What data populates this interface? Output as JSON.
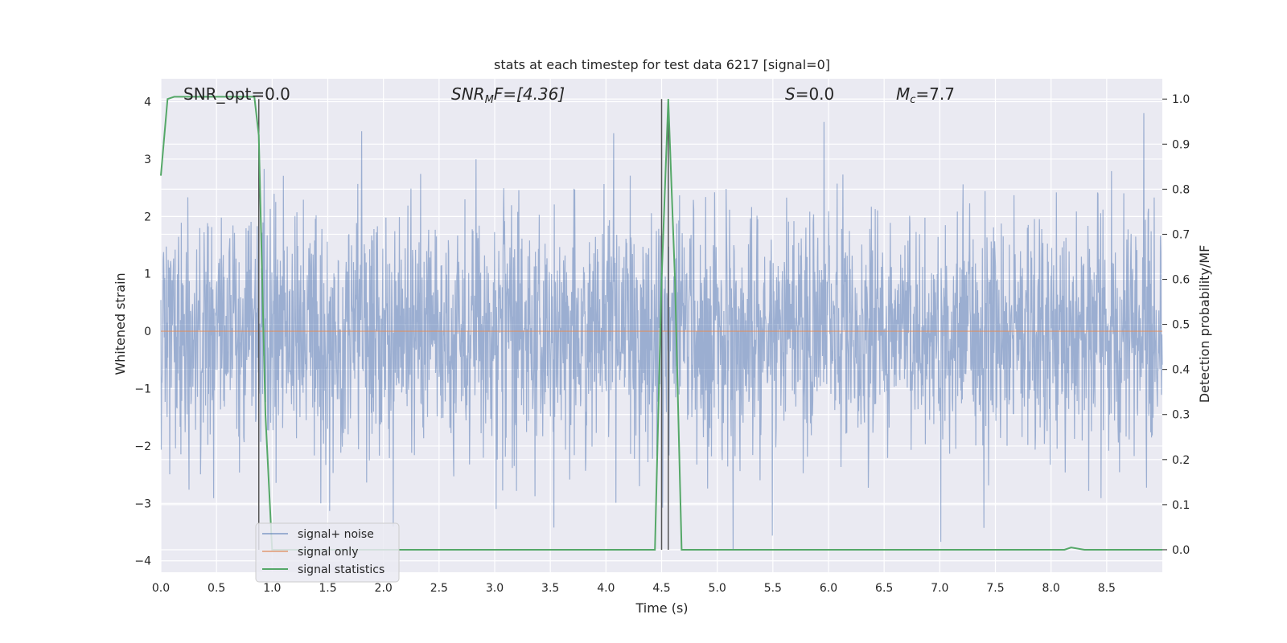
{
  "chart_data": {
    "type": "line",
    "title": "stats at each timestep for test data 6217 [signal=0]",
    "xlabel": "Time (s)",
    "ylabel": "Whitened strain",
    "y2label": "Detection probability/MF",
    "xlim": [
      0.0,
      9.0
    ],
    "ylim": [
      -4.2,
      4.4
    ],
    "y2lim": [
      -0.05,
      1.045
    ],
    "xticks": [
      "0.0",
      "0.5",
      "1.0",
      "1.5",
      "2.0",
      "2.5",
      "3.0",
      "3.5",
      "4.0",
      "4.5",
      "5.0",
      "5.5",
      "6.0",
      "6.5",
      "7.0",
      "7.5",
      "8.0",
      "8.5"
    ],
    "yticks": [
      "4",
      "3",
      "2",
      "1",
      "0",
      "−1",
      "−2",
      "−3",
      "−4"
    ],
    "y2ticks": [
      "1.0",
      "0.9",
      "0.8",
      "0.7",
      "0.6",
      "0.5",
      "0.4",
      "0.3",
      "0.2",
      "0.1",
      "0.0"
    ],
    "grid": true,
    "legend_position": "lower-left",
    "annotations": {
      "snr_opt": "SNR_opt=0.0",
      "snr_mf_sym": "SNR",
      "snr_mf_sub": "M",
      "snr_mf_rest": "F=[4.36]",
      "s_sym": "S",
      "s_rest": "=0.0",
      "mc_sym": "M",
      "mc_sub": "c",
      "mc_rest": "=7.7"
    },
    "vlines_x": [
      0.88,
      4.5,
      4.56
    ],
    "series": [
      {
        "name": "signal+ noise",
        "color": "#4c72b0",
        "axis": "left",
        "description_values": "gaussian-like whitened noise, roughly within [-4, 4]",
        "envelope_y": [
          -3.8,
          3.8
        ]
      },
      {
        "name": "signal only",
        "color": "#dd8452",
        "axis": "left",
        "values_note": "zero",
        "y": 0.0
      },
      {
        "name": "signal statistics",
        "color": "#55a868",
        "axis": "right",
        "x": [
          0.0,
          0.06,
          0.12,
          0.18,
          0.84,
          0.88,
          0.94,
          1.0,
          1.5,
          2.0,
          3.0,
          4.0,
          4.44,
          4.5,
          4.56,
          4.62,
          4.68,
          5.0,
          6.0,
          7.0,
          8.0,
          8.12,
          8.18,
          8.3,
          8.5,
          9.0
        ],
        "y": [
          0.83,
          1.0,
          1.005,
          1.005,
          1.005,
          0.92,
          0.3,
          0.0,
          0.0,
          0.0,
          0.0,
          0.0,
          0.0,
          0.6,
          1.0,
          0.6,
          0.0,
          0.0,
          0.0,
          0.0,
          0.0,
          0.0,
          0.005,
          0.0,
          0.0,
          0.0
        ]
      }
    ]
  }
}
